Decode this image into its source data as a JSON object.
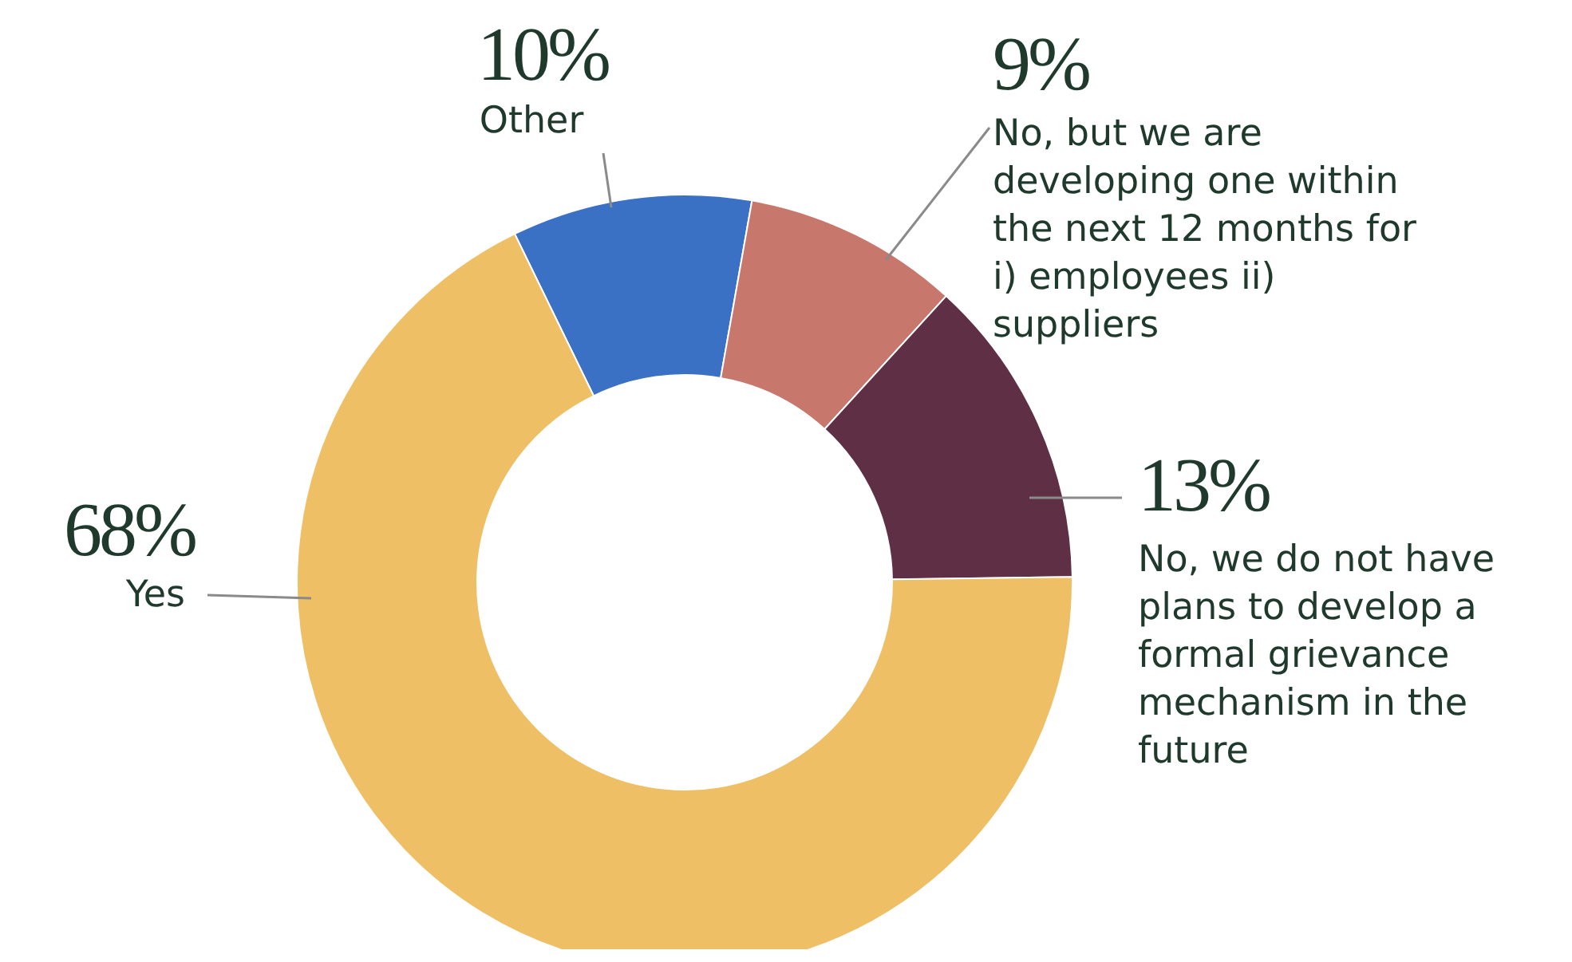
{
  "chart_data": {
    "type": "donut",
    "categories": [
      "Other",
      "No, but we are developing one within the next 12 months for i) employees ii) suppliers",
      "No, we do not have plans to develop a formal grievance mechanism in the future",
      "Yes"
    ],
    "values": [
      10,
      9,
      13,
      68
    ],
    "colors": [
      "#3a71c5",
      "#c8776d",
      "#5f2f46",
      "#eebf65"
    ],
    "value_labels": [
      "10%",
      "9%",
      "13%",
      "68%"
    ],
    "legend": false
  }
}
